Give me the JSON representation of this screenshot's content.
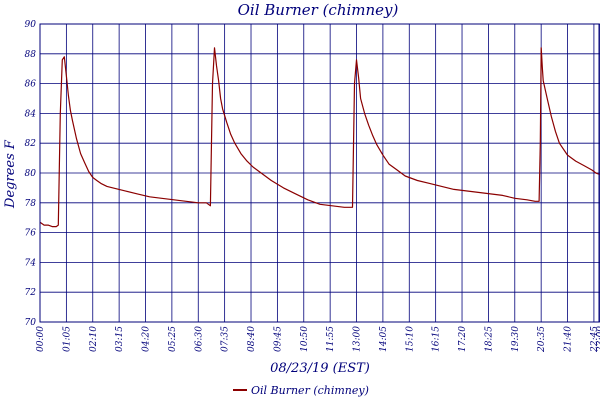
{
  "chart_data": {
    "type": "line",
    "title": "Oil Burner (chimney)",
    "xlabel": "08/23/19 (EST)",
    "ylabel": "Degrees F",
    "xlim": [
      "00:00",
      "23:00"
    ],
    "ylim": [
      70,
      90
    ],
    "y_ticks": [
      70,
      72,
      74,
      76,
      78,
      80,
      82,
      84,
      86,
      88,
      90
    ],
    "x_ticks": [
      "00:00",
      "01:05",
      "02:10",
      "03:15",
      "04:20",
      "05:25",
      "06:30",
      "07:35",
      "08:40",
      "09:45",
      "10:50",
      "11:55",
      "13:00",
      "14:05",
      "15:10",
      "16:15",
      "17:20",
      "18:25",
      "19:30",
      "20:35",
      "21:40",
      "22:45",
      "23:00"
    ],
    "grid": true,
    "legend": "bottom-center",
    "colors": {
      "series": "#8b0000",
      "text": "#00007a",
      "grid": "#00007a"
    },
    "series": [
      {
        "name": "Oil Burner (chimney)",
        "x": [
          "00:00",
          "00:10",
          "00:20",
          "00:30",
          "00:40",
          "00:45",
          "00:50",
          "00:55",
          "01:00",
          "01:05",
          "01:10",
          "01:15",
          "01:20",
          "01:30",
          "01:40",
          "01:50",
          "02:00",
          "02:10",
          "02:20",
          "02:30",
          "02:45",
          "03:00",
          "03:15",
          "03:30",
          "04:00",
          "04:30",
          "05:00",
          "05:30",
          "06:00",
          "06:30",
          "06:50",
          "07:00",
          "07:05",
          "07:10",
          "07:15",
          "07:20",
          "07:25",
          "07:30",
          "07:40",
          "07:50",
          "08:00",
          "08:15",
          "08:30",
          "08:45",
          "09:00",
          "09:15",
          "09:30",
          "10:00",
          "10:30",
          "11:00",
          "11:30",
          "12:00",
          "12:30",
          "12:50",
          "12:55",
          "13:00",
          "13:05",
          "13:10",
          "13:20",
          "13:30",
          "13:40",
          "13:50",
          "14:05",
          "14:20",
          "14:40",
          "15:00",
          "15:30",
          "16:00",
          "16:30",
          "17:00",
          "17:30",
          "18:00",
          "18:30",
          "19:00",
          "19:30",
          "20:00",
          "20:20",
          "20:30",
          "20:33",
          "20:35",
          "20:38",
          "20:40",
          "20:50",
          "21:00",
          "21:10",
          "21:20",
          "21:40",
          "22:00",
          "22:20",
          "22:40",
          "22:50",
          "23:00"
        ],
        "values": [
          76.7,
          76.5,
          76.5,
          76.4,
          76.4,
          76.5,
          84.0,
          87.6,
          87.8,
          86.5,
          85.2,
          84.2,
          83.5,
          82.3,
          81.3,
          80.7,
          80.1,
          79.7,
          79.5,
          79.3,
          79.1,
          79.0,
          78.9,
          78.8,
          78.6,
          78.4,
          78.3,
          78.2,
          78.1,
          78.0,
          78.0,
          77.8,
          86.0,
          88.4,
          87.2,
          86.2,
          85.0,
          84.3,
          83.4,
          82.6,
          82.0,
          81.3,
          80.8,
          80.4,
          80.1,
          79.8,
          79.5,
          79.0,
          78.6,
          78.2,
          77.9,
          77.8,
          77.7,
          77.7,
          86.0,
          87.6,
          86.4,
          85.0,
          84.0,
          83.2,
          82.5,
          81.9,
          81.2,
          80.6,
          80.2,
          79.8,
          79.5,
          79.3,
          79.1,
          78.9,
          78.8,
          78.7,
          78.6,
          78.5,
          78.3,
          78.2,
          78.1,
          78.1,
          82.0,
          88.4,
          87.0,
          86.2,
          85.0,
          83.8,
          82.8,
          82.0,
          81.2,
          80.8,
          80.5,
          80.2,
          80.0,
          79.9
        ]
      }
    ]
  }
}
